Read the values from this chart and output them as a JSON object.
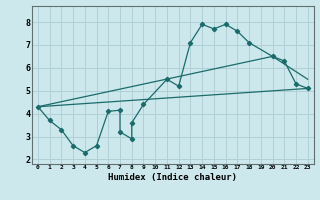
{
  "xlabel": "Humidex (Indice chaleur)",
  "ylabel": "",
  "bg_color": "#cde8ec",
  "grid_color": "#b0d0d5",
  "line_color": "#1a6b6b",
  "xlim": [
    -0.5,
    23.5
  ],
  "ylim": [
    1.8,
    8.7
  ],
  "xticks": [
    0,
    1,
    2,
    3,
    4,
    5,
    6,
    7,
    8,
    9,
    10,
    11,
    12,
    13,
    14,
    15,
    16,
    17,
    18,
    19,
    20,
    21,
    22,
    23
  ],
  "yticks": [
    2,
    3,
    4,
    5,
    6,
    7,
    8
  ],
  "zigzag_x": [
    0,
    1,
    2,
    3,
    4,
    5,
    6,
    7,
    7,
    8,
    8,
    9,
    11,
    12,
    13,
    14,
    15,
    16,
    17,
    18,
    20,
    21,
    22,
    23
  ],
  "zigzag_y": [
    4.3,
    3.7,
    3.3,
    2.6,
    2.3,
    2.6,
    4.1,
    4.15,
    3.2,
    2.9,
    3.6,
    4.4,
    5.5,
    5.2,
    7.1,
    7.9,
    7.7,
    7.9,
    7.6,
    7.1,
    6.5,
    6.3,
    5.3,
    5.1
  ],
  "line1_x": [
    0,
    23
  ],
  "line1_y": [
    4.3,
    5.1
  ],
  "line2_x": [
    0,
    20,
    23
  ],
  "line2_y": [
    4.3,
    6.5,
    5.5
  ]
}
